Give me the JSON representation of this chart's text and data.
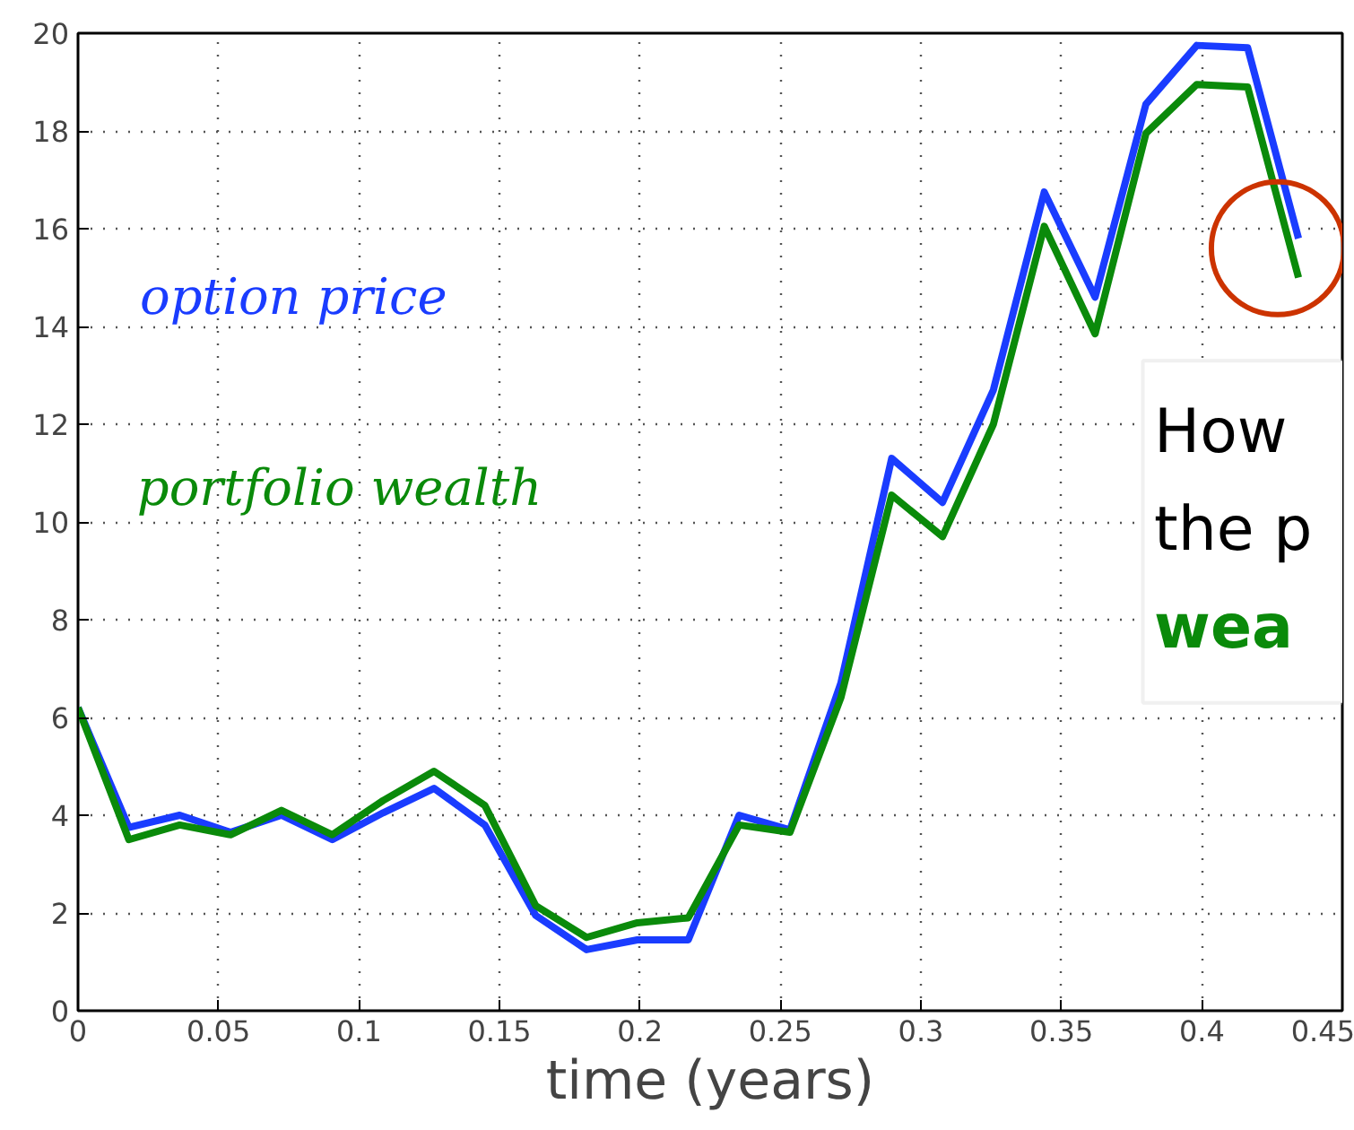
{
  "chart_data": {
    "type": "line",
    "xlabel": "time (years)",
    "x": [
      0,
      0.0181,
      0.0362,
      0.0543,
      0.0724,
      0.0905,
      0.1086,
      0.1267,
      0.1448,
      0.1629,
      0.181,
      0.1991,
      0.2172,
      0.2353,
      0.2534,
      0.2715,
      0.2896,
      0.3077,
      0.3258,
      0.3439,
      0.362,
      0.3801,
      0.3982,
      0.4163,
      0.4344
    ],
    "series": [
      {
        "name": "option price",
        "color": "#1a3cff",
        "values": [
          6.2,
          3.75,
          4.0,
          3.65,
          4.0,
          3.5,
          4.05,
          4.55,
          3.8,
          1.95,
          1.25,
          1.45,
          1.45,
          4.0,
          3.7,
          6.7,
          11.3,
          10.4,
          12.7,
          16.75,
          14.6,
          18.55,
          19.75,
          19.7,
          15.8
        ]
      },
      {
        "name": "portfolio wealth",
        "color": "#0a8a0a",
        "values": [
          6.2,
          3.5,
          3.8,
          3.6,
          4.1,
          3.6,
          4.3,
          4.9,
          4.2,
          2.15,
          1.5,
          1.8,
          1.9,
          3.8,
          3.65,
          6.4,
          10.55,
          9.7,
          12.0,
          16.05,
          13.85,
          17.95,
          18.95,
          18.9,
          15.0
        ]
      }
    ],
    "xlim": [
      0,
      0.45
    ],
    "ylim": [
      0,
      20
    ],
    "xticks": [
      0,
      0.05,
      0.1,
      0.15,
      0.2,
      0.25,
      0.3,
      0.35,
      0.4,
      0.45
    ],
    "yticks": [
      0,
      2,
      4,
      6,
      8,
      10,
      12,
      14,
      16,
      18,
      20
    ],
    "grid": true,
    "legend": false,
    "marker": "none",
    "line_style": "solid",
    "annotations": [
      "How",
      "the p",
      "wea"
    ]
  }
}
